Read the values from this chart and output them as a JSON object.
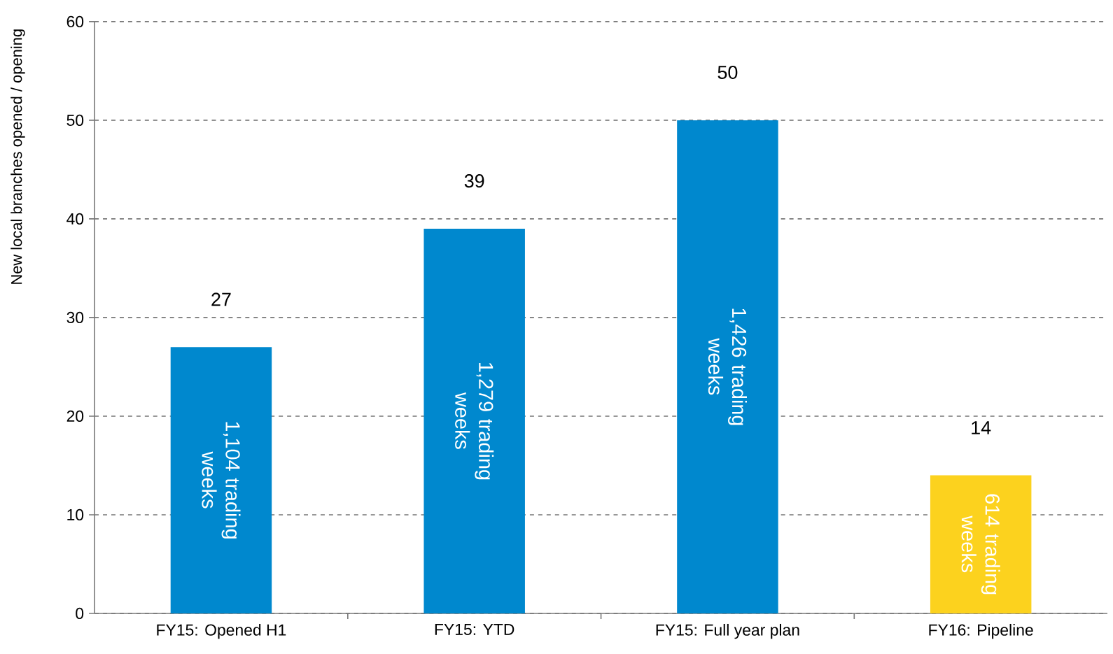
{
  "chart_data": {
    "type": "bar",
    "ylabel": "New local branches opened / opening",
    "categories": [
      "FY15: Opened H1",
      "FY15: YTD",
      "FY15: Full year plan",
      "FY16: Pipeline"
    ],
    "values": [
      27,
      39,
      50,
      14
    ],
    "colors": [
      "#0088ce",
      "#0088ce",
      "#0088ce",
      "#fcd21e"
    ],
    "ylim": [
      0,
      60
    ],
    "yticks": [
      0,
      10,
      20,
      30,
      40,
      50,
      60
    ],
    "grid": "y",
    "data_labels": true,
    "annotations": [
      "1,104 trading weeks",
      "1,279 trading weeks",
      "1,426 trading weeks",
      "614 trading weeks"
    ]
  }
}
